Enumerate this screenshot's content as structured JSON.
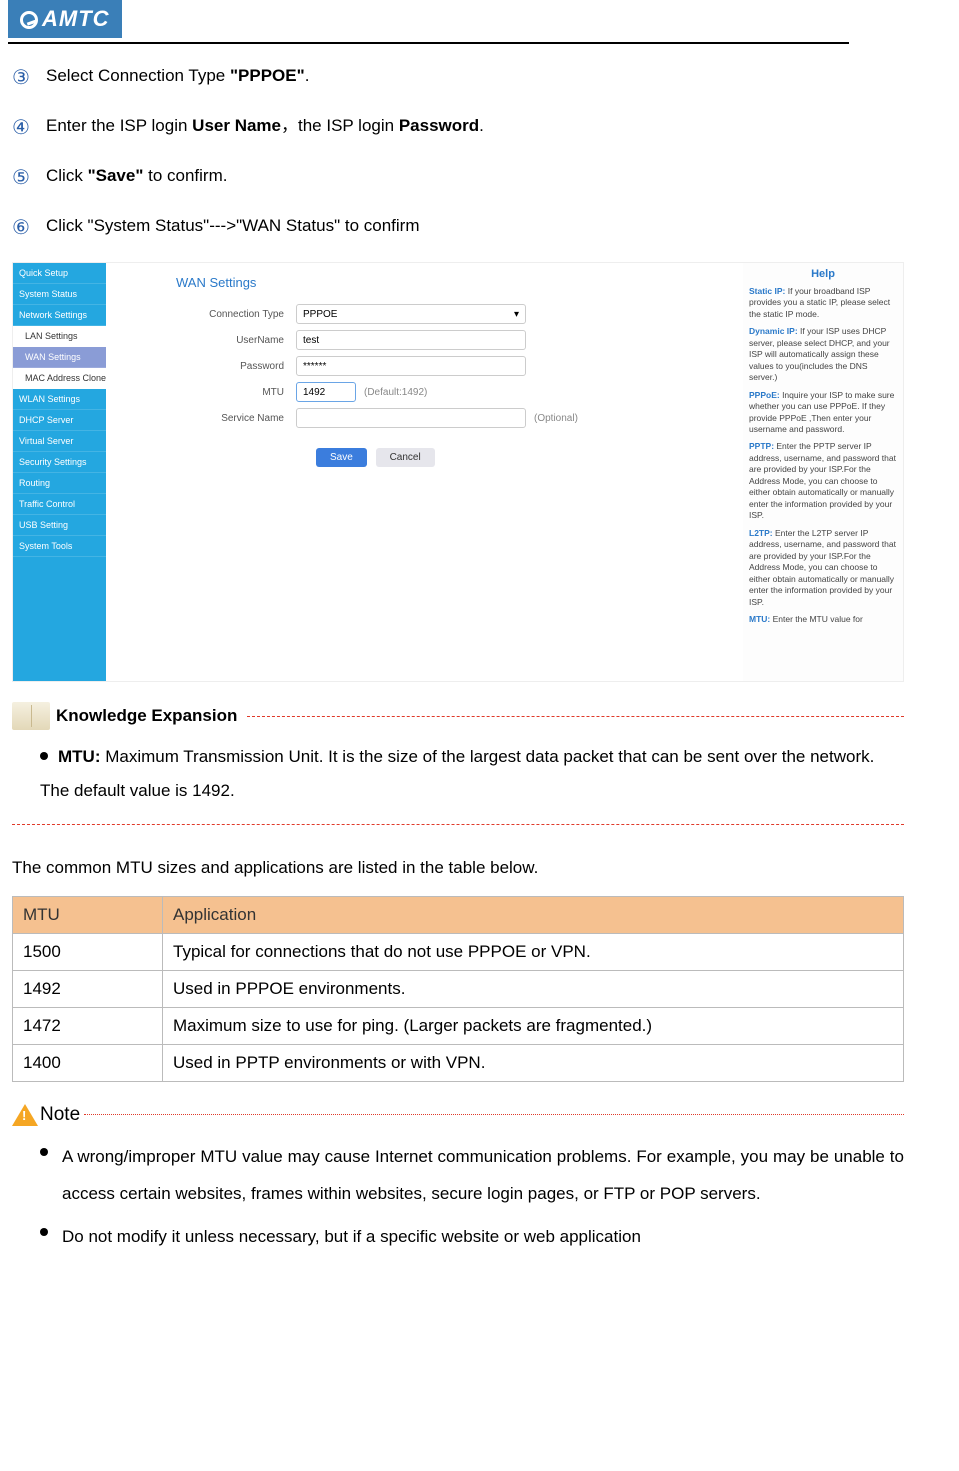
{
  "logo_text": "AMTC",
  "steps": [
    {
      "num": "③",
      "prefix": "Select Connection Type ",
      "bold": "\"PPPOE\"",
      "suffix": "."
    },
    {
      "num": "④",
      "html": "Enter the ISP login <b>User Name</b>，the ISP login <b>Password</b>."
    },
    {
      "num": "⑤",
      "html": "Click <b>\"Save\"</b> to confirm."
    },
    {
      "num": "⑥",
      "html": "Click \"System Status\"--->\"WAN Status\" to confirm"
    }
  ],
  "shot": {
    "sidebar": [
      "Quick Setup",
      "System Status",
      "Network Settings",
      "LAN Settings",
      "WAN Settings",
      "MAC Address Clone",
      "WLAN Settings",
      "DHCP Server",
      "Virtual Server",
      "Security Settings",
      "Routing",
      "Traffic Control",
      "USB Setting",
      "System Tools"
    ],
    "sidebar_sub_idx": [
      3,
      5
    ],
    "sidebar_active_idx": 4,
    "title": "WAN Settings",
    "fields": {
      "conn_label": "Connection Type",
      "conn_val": "PPPOE",
      "user_label": "UserName",
      "user_val": "test",
      "pass_label": "Password",
      "pass_val": "******",
      "mtu_label": "MTU",
      "mtu_val": "1492",
      "mtu_hint": "(Default:1492)",
      "srv_label": "Service Name",
      "srv_val": "",
      "srv_hint": "(Optional)",
      "save": "Save",
      "cancel": "Cancel"
    },
    "help": {
      "title": "Help",
      "items": [
        {
          "label": "Static IP:",
          "text": " If your broadband ISP provides you a static IP, please select the static IP mode."
        },
        {
          "label": "Dynamic IP:",
          "text": " If your ISP uses DHCP server, please select DHCP, and your ISP will automatically assign these values to you(includes the DNS server.)"
        },
        {
          "label": "PPPoE:",
          "text": " Inquire your ISP to make sure whether you can use PPPoE. If they provide PPPoE ,Then enter your username and password."
        },
        {
          "label": "PPTP:",
          "text": " Enter the PPTP server IP address, username, and password that are provided by your ISP.For the Address Mode, you can choose to either obtain automatically or manually enter the information provided by your ISP."
        },
        {
          "label": "L2TP:",
          "text": " Enter the L2TP server IP address, username, and password that are provided by your ISP.For the Address Mode, you can choose to either obtain automatically or manually enter the information provided by your ISP."
        },
        {
          "label": "MTU:",
          "text": " Enter the MTU value for"
        }
      ]
    }
  },
  "ke_title": "Knowledge Expansion",
  "ke_bullet_lead": "MTU:",
  "ke_bullet_text": " Maximum Transmission Unit. It is the size of the largest data packet that can be sent over the network. The default value is 1492.",
  "para_common": "The common MTU sizes and applications are listed in the table below.",
  "table": {
    "headers": [
      "MTU",
      "Application"
    ],
    "header_bg": "#f5c190",
    "rows": [
      [
        "1500",
        "Typical for connections that do not use PPPOE or VPN."
      ],
      [
        "1492",
        "Used in PPPOE environments."
      ],
      [
        "1472",
        "Maximum size to use for ping. (Larger packets are fragmented.)"
      ],
      [
        "1400",
        "Used in PPTP environments or with VPN."
      ]
    ]
  },
  "note_label": "Note",
  "notes": [
    "A wrong/improper MTU value may cause Internet communication problems. For example, you may be unable to access certain websites, frames within websites, secure login pages, or FTP or POP servers.",
    "Do not modify it unless necessary, but if a specific website or web application"
  ]
}
